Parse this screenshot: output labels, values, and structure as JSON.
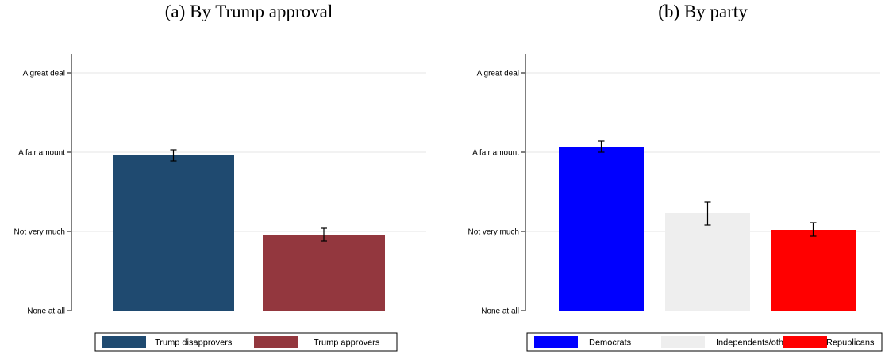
{
  "panels": [
    {
      "title": "(a) By Trump approval"
    },
    {
      "title": "(b) By party"
    }
  ],
  "chart_data": [
    {
      "type": "bar",
      "title": "(a) By Trump approval",
      "ylim": [
        1,
        4
      ],
      "yticks": [
        1,
        2,
        3,
        4
      ],
      "ytick_labels": [
        "None at all",
        "Not very much",
        "A fair amount",
        "A great deal"
      ],
      "grid": true,
      "legend_placement": "bottom",
      "series": [
        {
          "name": "Trump disapprovers",
          "value": 2.96,
          "ci": [
            2.89,
            3.03
          ],
          "color": "#1f4a70"
        },
        {
          "name": "Trump approvers",
          "value": 1.96,
          "ci": [
            1.88,
            2.04
          ],
          "color": "#93373e"
        }
      ]
    },
    {
      "type": "bar",
      "title": "(b) By party",
      "ylim": [
        1,
        4
      ],
      "yticks": [
        1,
        2,
        3,
        4
      ],
      "ytick_labels": [
        "None at all",
        "Not very much",
        "A fair amount",
        "A great deal"
      ],
      "grid": true,
      "legend_placement": "bottom",
      "series": [
        {
          "name": "Democrats",
          "value": 3.07,
          "ci": [
            3.0,
            3.14
          ],
          "color": "#0000ff"
        },
        {
          "name": "Independents/other",
          "value": 2.23,
          "ci": [
            2.08,
            2.37
          ],
          "color": "#eeeeee"
        },
        {
          "name": "Republicans",
          "value": 2.02,
          "ci": [
            1.94,
            2.11
          ],
          "color": "#ff0000"
        }
      ]
    }
  ]
}
